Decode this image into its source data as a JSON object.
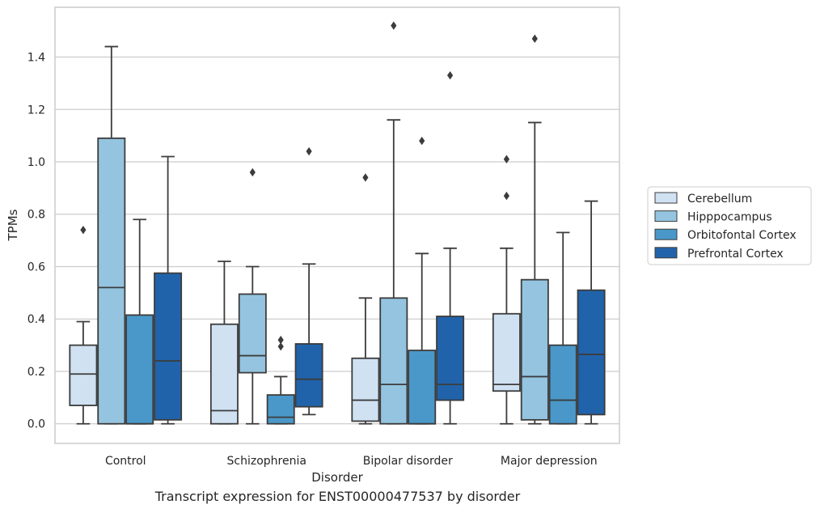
{
  "caption": "Transcript expression for ENST00000477537 by disorder",
  "chart_data": {
    "type": "box",
    "xlabel": "Disorder",
    "ylabel": "TPMs",
    "ylim": [
      -0.075,
      1.59
    ],
    "yticks": [
      "0.0",
      "0.2",
      "0.4",
      "0.6",
      "0.8",
      "1.0",
      "1.2",
      "1.4"
    ],
    "grid": true,
    "legend_position": "right",
    "categories": [
      "Control",
      "Schizophrenia",
      "Bipolar disorder",
      "Major depression"
    ],
    "series": [
      {
        "name": "Cerebellum",
        "color": "#d0e1f2",
        "boxes": [
          {
            "whisker_low": 0.0,
            "q1": 0.07,
            "median": 0.19,
            "q3": 0.3,
            "whisker_high": 0.39,
            "outliers": [
              0.74
            ]
          },
          {
            "whisker_low": 0.0,
            "q1": 0.0,
            "median": 0.05,
            "q3": 0.38,
            "whisker_high": 0.62,
            "outliers": []
          },
          {
            "whisker_low": 0.0,
            "q1": 0.01,
            "median": 0.09,
            "q3": 0.25,
            "whisker_high": 0.48,
            "outliers": [
              0.94
            ]
          },
          {
            "whisker_low": 0.0,
            "q1": 0.125,
            "median": 0.15,
            "q3": 0.42,
            "whisker_high": 0.67,
            "outliers": [
              0.87,
              1.01
            ]
          }
        ]
      },
      {
        "name": "Hipppocampus",
        "color": "#94c4df",
        "boxes": [
          {
            "whisker_low": 0.0,
            "q1": 0.0,
            "median": 0.52,
            "q3": 1.09,
            "whisker_high": 1.44,
            "outliers": []
          },
          {
            "whisker_low": 0.0,
            "q1": 0.195,
            "median": 0.26,
            "q3": 0.495,
            "whisker_high": 0.6,
            "outliers": [
              0.96
            ]
          },
          {
            "whisker_low": 0.0,
            "q1": 0.0,
            "median": 0.15,
            "q3": 0.48,
            "whisker_high": 1.16,
            "outliers": [
              1.52
            ]
          },
          {
            "whisker_low": 0.0,
            "q1": 0.015,
            "median": 0.18,
            "q3": 0.55,
            "whisker_high": 1.15,
            "outliers": [
              1.47
            ]
          }
        ]
      },
      {
        "name": "Orbitofontal Cortex",
        "color": "#4a98c9",
        "boxes": [
          {
            "whisker_low": 0.0,
            "q1": 0.0,
            "median": 0.0,
            "q3": 0.415,
            "whisker_high": 0.78,
            "outliers": []
          },
          {
            "whisker_low": 0.0,
            "q1": 0.0,
            "median": 0.025,
            "q3": 0.11,
            "whisker_high": 0.18,
            "outliers": [
              0.295,
              0.32
            ]
          },
          {
            "whisker_low": 0.0,
            "q1": 0.0,
            "median": 0.0,
            "q3": 0.28,
            "whisker_high": 0.65,
            "outliers": [
              1.08
            ]
          },
          {
            "whisker_low": 0.0,
            "q1": 0.0,
            "median": 0.09,
            "q3": 0.3,
            "whisker_high": 0.73,
            "outliers": []
          }
        ]
      },
      {
        "name": "Prefrontal Cortex",
        "color": "#2163aa",
        "boxes": [
          {
            "whisker_low": 0.0,
            "q1": 0.015,
            "median": 0.24,
            "q3": 0.575,
            "whisker_high": 1.02,
            "outliers": []
          },
          {
            "whisker_low": 0.035,
            "q1": 0.065,
            "median": 0.17,
            "q3": 0.305,
            "whisker_high": 0.61,
            "outliers": [
              1.04
            ]
          },
          {
            "whisker_low": 0.0,
            "q1": 0.09,
            "median": 0.15,
            "q3": 0.41,
            "whisker_high": 0.67,
            "outliers": [
              1.33
            ]
          },
          {
            "whisker_low": 0.0,
            "q1": 0.035,
            "median": 0.265,
            "q3": 0.51,
            "whisker_high": 0.85,
            "outliers": []
          }
        ]
      }
    ]
  }
}
